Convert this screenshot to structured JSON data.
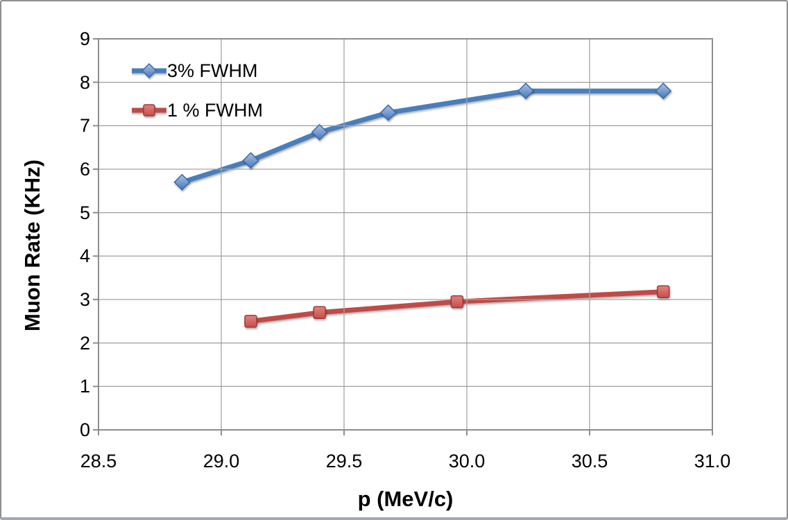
{
  "frame": {
    "background": "#ffffff",
    "border_color": "#8f8f8f",
    "bottom_edge_color": "#a4a8af"
  },
  "chart_data": {
    "type": "line",
    "title": "",
    "xlabel": "p (MeV/c)",
    "ylabel": "Muon Rate (KHz)",
    "xlim": [
      28.5,
      31.0
    ],
    "ylim": [
      0,
      9
    ],
    "x_ticks": [
      28.5,
      29.0,
      29.5,
      30.0,
      30.5,
      31.0
    ],
    "x_tick_labels": [
      "28.5",
      "29.0",
      "29.5",
      "30.0",
      "30.5",
      "31.0"
    ],
    "y_ticks": [
      0,
      1,
      2,
      3,
      4,
      5,
      6,
      7,
      8,
      9
    ],
    "y_tick_labels": [
      "0",
      "1",
      "2",
      "3",
      "4",
      "5",
      "6",
      "7",
      "8",
      "9"
    ],
    "grid": true,
    "gridline_color": "#a4a4a4",
    "plot_border_color": "#8d8d8d",
    "legend_position": "inside-top-left",
    "series": [
      {
        "name": "3% FWHM",
        "marker": "diamond",
        "line_color": "#4a7ebb",
        "marker_fill_light": "#a9c4e9",
        "marker_fill_dark": "#4876b6",
        "marker_border": "#3a6ba5",
        "x": [
          28.84,
          29.12,
          29.4,
          29.68,
          30.24,
          30.8
        ],
        "y": [
          5.7,
          6.2,
          6.85,
          7.3,
          7.8,
          7.8
        ]
      },
      {
        "name": "1 % FWHM",
        "marker": "square",
        "line_color": "#bf4b47",
        "marker_fill_light": "#e4827d",
        "marker_fill_dark": "#c24f4b",
        "marker_border": "#9c3734",
        "x": [
          29.12,
          29.4,
          29.96,
          30.8
        ],
        "y": [
          2.5,
          2.7,
          2.95,
          3.18
        ]
      }
    ]
  }
}
